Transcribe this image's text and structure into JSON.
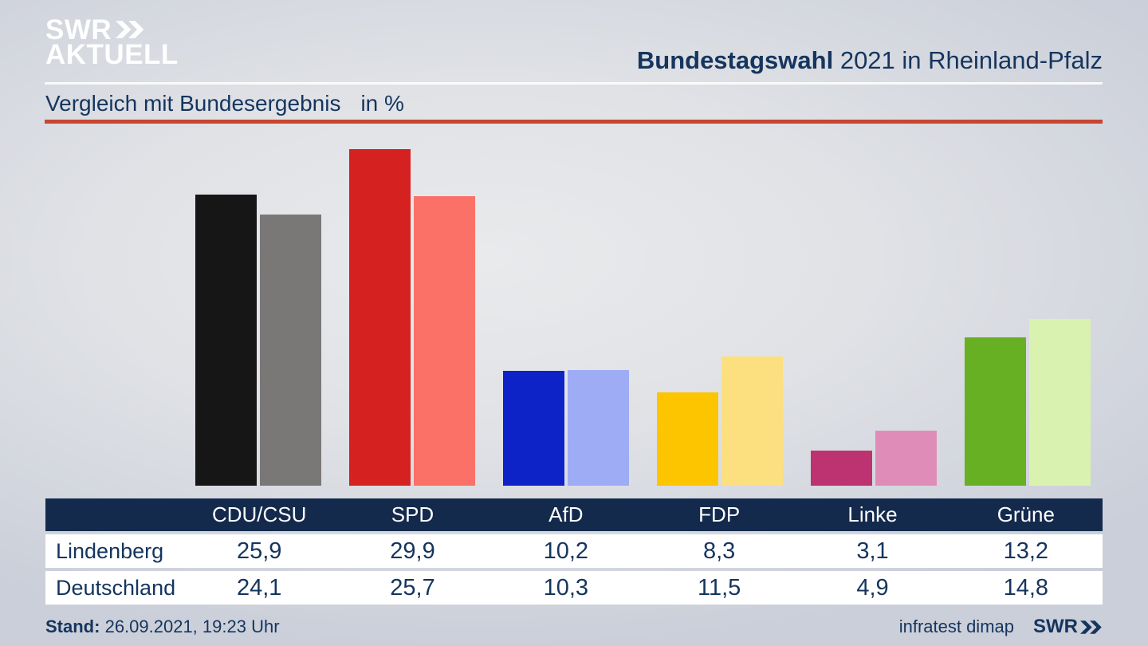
{
  "brand": {
    "logo_line1": "SWR",
    "logo_line2": "AKTUELL"
  },
  "header": {
    "title_bold": "Bundestagswahl",
    "title_rest": "2021 in Rheinland-Pfalz"
  },
  "subtitle": {
    "label": "Vergleich mit Bundesergebnis",
    "unit": "in %"
  },
  "chart_data": {
    "type": "bar",
    "categories": [
      "CDU/CSU",
      "SPD",
      "AfD",
      "FDP",
      "Linke",
      "Grüne"
    ],
    "series": [
      {
        "name": "Lindenberg",
        "values": [
          25.9,
          29.9,
          10.2,
          8.3,
          3.1,
          13.2
        ],
        "colors": [
          "#161617",
          "#d52221",
          "#0d23c8",
          "#fdc400",
          "#bd3270",
          "#68b023"
        ]
      },
      {
        "name": "Deutschland",
        "values": [
          24.1,
          25.7,
          10.3,
          11.5,
          4.9,
          14.8
        ],
        "colors": [
          "#7a7877",
          "#fb7168",
          "#9dacf5",
          "#fce07f",
          "#df8db8",
          "#d9f2af"
        ]
      }
    ],
    "title": "Vergleich mit Bundesergebnis in %",
    "xlabel": "",
    "ylabel": "",
    "ylim": [
      0,
      30
    ],
    "legend_position": "table-below",
    "grid": false,
    "value_format": "decimal-comma"
  },
  "footer": {
    "stand_label": "Stand:",
    "stand_value": "26.09.2021, 19:23 Uhr",
    "source": "infratest dimap",
    "brand": "SWR"
  },
  "colors": {
    "navy": "#15355e",
    "accent_rule": "#c8462f",
    "table_header_bg": "#132a4d",
    "table_row_bg": "#ffffff",
    "logo_color": "#ffffff"
  }
}
